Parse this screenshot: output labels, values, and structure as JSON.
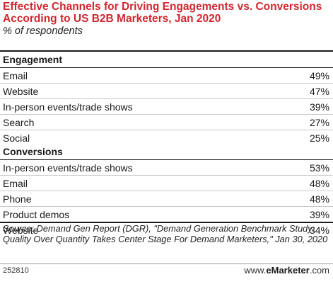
{
  "chart_data": {
    "type": "table",
    "title": "Effective Channels for Driving Engagements vs. Conversions According to US B2B Marketers, Jan 2020",
    "subtitle": "% of respondents",
    "sections": [
      {
        "name": "Engagement",
        "rows": [
          {
            "label": "Email",
            "value": 49,
            "display": "49%"
          },
          {
            "label": "Website",
            "value": 47,
            "display": "47%"
          },
          {
            "label": "In-person events/trade shows",
            "value": 39,
            "display": "39%"
          },
          {
            "label": "Search",
            "value": 27,
            "display": "27%"
          },
          {
            "label": "Social",
            "value": 25,
            "display": "25%"
          }
        ]
      },
      {
        "name": "Conversions",
        "rows": [
          {
            "label": "In-person events/trade shows",
            "value": 53,
            "display": "53%"
          },
          {
            "label": "Email",
            "value": 48,
            "display": "48%"
          },
          {
            "label": "Phone",
            "value": 48,
            "display": "48%"
          },
          {
            "label": "Product demos",
            "value": 39,
            "display": "39%"
          },
          {
            "label": "Website",
            "value": 34,
            "display": "34%"
          }
        ]
      }
    ]
  },
  "source": "Source: Demand Gen Report (DGR), \"Demand Generation Benchmark Study: Quality Over Quantity Takes Center Stage For Demand Marketers,\" Jan 30, 2020",
  "chart_id": "252810",
  "brand": {
    "prefix": "www.",
    "name": "eMarketer",
    "suffix": ".com"
  }
}
